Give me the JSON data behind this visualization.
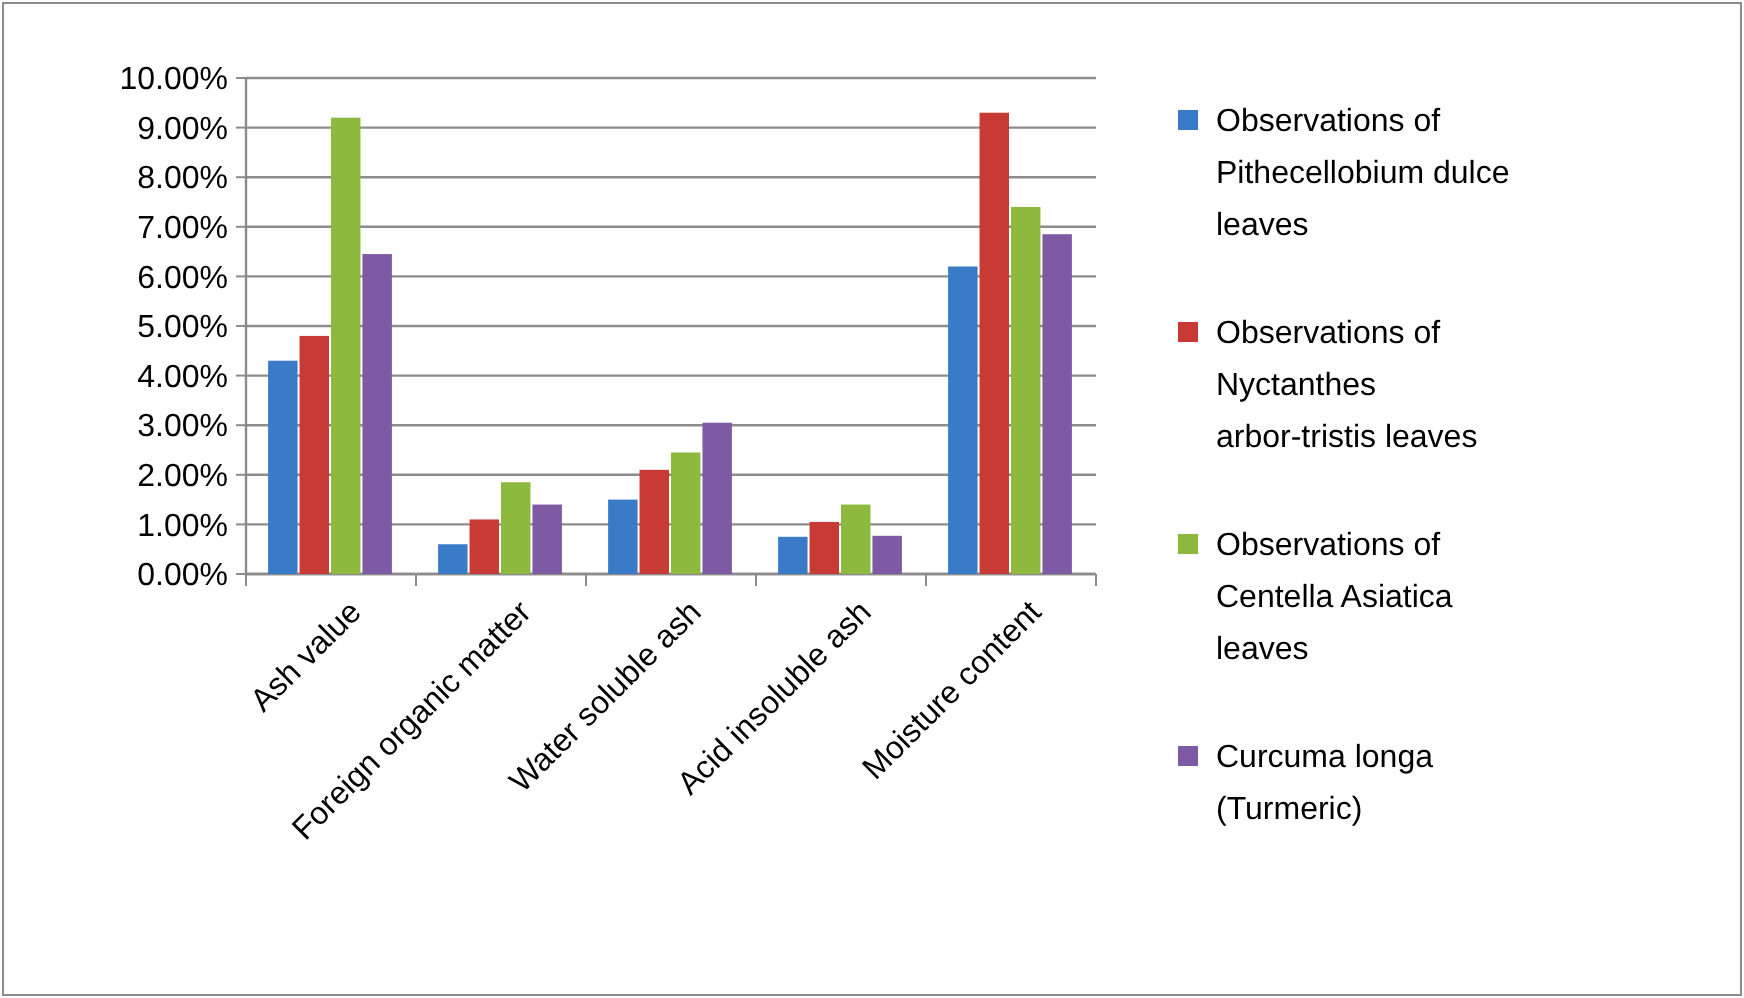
{
  "chart_data": {
    "type": "bar",
    "categories": [
      "Ash value",
      "Foreign organic matter",
      "Water soluble ash",
      "Acid insoluble ash",
      "Moisture content"
    ],
    "series": [
      {
        "name": "Observations of Pithecellobium dulce leaves",
        "color": "#3a7bc8",
        "values": [
          4.3,
          0.6,
          1.5,
          0.75,
          6.2
        ]
      },
      {
        "name": "Observations of Nyctanthes arbor-tristis leaves",
        "color": "#c83a36",
        "values": [
          4.8,
          1.1,
          2.1,
          1.05,
          9.3
        ]
      },
      {
        "name": "Observations of Centella Asiatica leaves",
        "color": "#8db93e",
        "values": [
          9.2,
          1.85,
          2.45,
          1.4,
          7.4
        ]
      },
      {
        "name": "Curcuma longa (Turmeric)",
        "color": "#7d5aa3",
        "values": [
          6.45,
          1.4,
          3.05,
          0.77,
          6.85
        ]
      }
    ],
    "ylim": [
      0,
      10
    ],
    "yticks": [
      {
        "value": 0,
        "label": "0.00%"
      },
      {
        "value": 1,
        "label": "1.00%"
      },
      {
        "value": 2,
        "label": "2.00%"
      },
      {
        "value": 3,
        "label": "3.00%"
      },
      {
        "value": 4,
        "label": "4.00%"
      },
      {
        "value": 5,
        "label": "5.00%"
      },
      {
        "value": 6,
        "label": "6.00%"
      },
      {
        "value": 7,
        "label": "7.00%"
      },
      {
        "value": 8,
        "label": "8.00%"
      },
      {
        "value": 9,
        "label": "9.00%"
      },
      {
        "value": 10,
        "label": "10.00%"
      }
    ],
    "grid": "y",
    "legend": "right"
  }
}
